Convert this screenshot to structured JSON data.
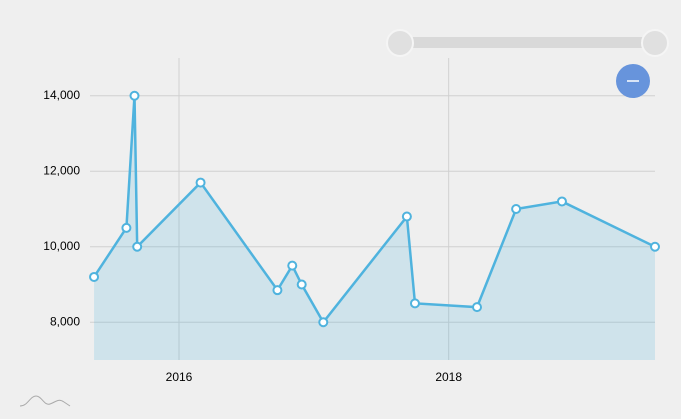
{
  "chart_data": {
    "type": "area",
    "x": [
      2015.37,
      2015.61,
      2015.67,
      2015.69,
      2016.16,
      2016.73,
      2016.84,
      2016.91,
      2017.07,
      2017.69,
      2017.75,
      2018.21,
      2018.5,
      2018.84,
      2019.53
    ],
    "values": [
      9200,
      10500,
      14000,
      10000,
      11700,
      8850,
      9500,
      9000,
      8000,
      10800,
      8500,
      8400,
      11000,
      11200,
      10000
    ],
    "color": "#4fb3de",
    "xlim": [
      2015.34,
      2019.53
    ],
    "xticks": [
      2016,
      2018
    ],
    "ylim": [
      7000,
      15000
    ],
    "yticks": [
      {
        "value": 8000,
        "label": "8,000"
      },
      {
        "value": 10000,
        "label": "10,000"
      },
      {
        "value": 12000,
        "label": "12,000"
      },
      {
        "value": 14000,
        "label": "14,000"
      }
    ],
    "grid": true
  }
}
